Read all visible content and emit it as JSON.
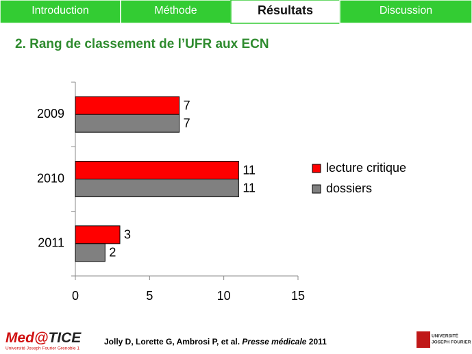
{
  "nav": {
    "tabs": [
      "Introduction",
      "Méthode",
      "Résultats",
      "Discussion"
    ],
    "active": 2
  },
  "title": "2. Rang de classement de l’UFR aux ECN",
  "chart_data": {
    "type": "bar",
    "orientation": "horizontal",
    "categories": [
      "2009",
      "2010",
      "2011"
    ],
    "series": [
      {
        "name": "lecture critique",
        "color": "#ff0000",
        "values": [
          7,
          11,
          3
        ]
      },
      {
        "name": "dossiers",
        "color": "#808080",
        "values": [
          7,
          11,
          2
        ]
      }
    ],
    "xlim": [
      0,
      15
    ],
    "xticks": [
      0,
      5,
      10,
      15
    ],
    "legend": "right",
    "grid": false
  },
  "footer": {
    "logo": {
      "brand": "Med@",
      "brand2": "TICE",
      "sub": "Université Joseph Fourier Grenoble 1"
    },
    "citation": {
      "authors": "Jolly D, Lorette G, Ambrosi P, et al. ",
      "journal": "Presse médicale",
      "year": " 2011"
    },
    "right_logo": {
      "line1": "UNIVERSITÉ",
      "line2": "JOSEPH FOURIER"
    }
  }
}
